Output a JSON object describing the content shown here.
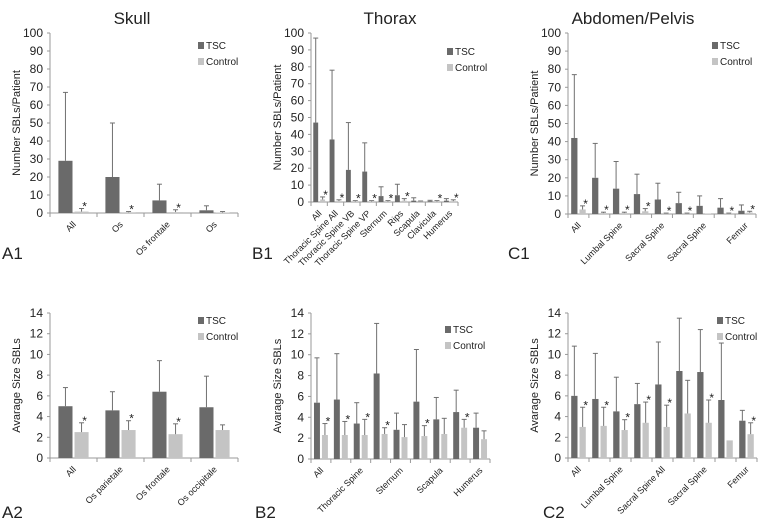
{
  "titles": {
    "skull": "Skull",
    "thorax": "Thorax",
    "abdomen": "Abdomen/Pelvis"
  },
  "colors": {
    "tsc": "#6a6a6a",
    "control": "#c4c4c4",
    "error": "#707070"
  },
  "chart_data": [
    {
      "id": "A1",
      "panel_label": "A1",
      "type": "bar",
      "ylabel": "Number SBLs/Patient",
      "ylim": [
        0,
        100
      ],
      "yticks": [
        0,
        10,
        20,
        30,
        40,
        50,
        60,
        70,
        80,
        90,
        100
      ],
      "legend": [
        "TSC",
        "Control"
      ],
      "legend_position": "top-right",
      "categories": [
        "All",
        "Os",
        "Os frontale",
        "Os"
      ],
      "series": [
        {
          "name": "TSC",
          "values": [
            29,
            20,
            7,
            1.5
          ],
          "err": [
            38,
            30,
            9,
            2.5
          ]
        },
        {
          "name": "Control",
          "values": [
            0.8,
            0.4,
            0.5,
            0.3
          ],
          "err": [
            1.7,
            0.4,
            1.3,
            0.5
          ]
        }
      ],
      "significant": [
        true,
        true,
        true,
        false
      ]
    },
    {
      "id": "B1",
      "panel_label": "B1",
      "type": "bar",
      "ylabel": "Number SBLs/Patient",
      "ylim": [
        0,
        100
      ],
      "yticks": [
        0,
        10,
        20,
        30,
        40,
        50,
        60,
        70,
        80,
        90,
        100
      ],
      "legend": [
        "TSC",
        "Control"
      ],
      "legend_position": "top-right",
      "categories": [
        "All",
        "Thoracic Spine All",
        "Thoracic Spine VB",
        "Thoracic Spine VP",
        "Sternum",
        "Rips",
        "Scapula",
        "Clavicula",
        "Humerus"
      ],
      "series": [
        {
          "name": "TSC",
          "values": [
            47,
            37,
            19,
            18,
            3.5,
            4,
            0.8,
            0.5,
            0.8
          ],
          "err": [
            50,
            41,
            28,
            17,
            5.5,
            6.5,
            1.7,
            0.5,
            1.2
          ]
        },
        {
          "name": "Control",
          "values": [
            1.5,
            0.5,
            0.3,
            0.3,
            0.3,
            0.8,
            0.3,
            0.3,
            0.5
          ],
          "err": [
            1.5,
            0.8,
            0.5,
            0.5,
            0.5,
            1.2,
            0.3,
            0.5,
            0.8
          ]
        }
      ],
      "significant": [
        true,
        true,
        true,
        true,
        true,
        true,
        false,
        true,
        true
      ]
    },
    {
      "id": "C1",
      "panel_label": "C1",
      "type": "bar",
      "ylabel": "Number SBLs/Patient",
      "ylim": [
        0,
        100
      ],
      "yticks": [
        0,
        10,
        20,
        30,
        40,
        50,
        60,
        70,
        80,
        90,
        100
      ],
      "legend": [
        "TSC",
        "Control"
      ],
      "legend_position": "top-right",
      "categories": [
        "All",
        "",
        "Lumbal Spine",
        "",
        "Sacral Spine",
        "",
        "Sacral Spine",
        "",
        "Femur"
      ],
      "series": [
        {
          "name": "TSC",
          "values": [
            42,
            20,
            14,
            11,
            8,
            6,
            4.5,
            3.5,
            1.8
          ],
          "err": [
            35,
            19,
            15,
            11,
            9,
            6,
            5.5,
            5,
            3.2
          ]
        },
        {
          "name": "Control",
          "values": [
            2.5,
            0.5,
            0.5,
            1.5,
            0.3,
            0.3,
            0.3,
            0.3,
            0.8
          ],
          "err": [
            2,
            0.5,
            0.5,
            1.5,
            0.2,
            0.2,
            0,
            0.2,
            0.7
          ]
        }
      ],
      "significant": [
        true,
        true,
        true,
        true,
        true,
        true,
        false,
        true,
        true
      ]
    },
    {
      "id": "A2",
      "panel_label": "A2",
      "type": "bar",
      "ylabel": "Avarage Size SBLs",
      "ylim": [
        0,
        14
      ],
      "yticks": [
        0,
        2,
        4,
        6,
        8,
        10,
        12,
        14
      ],
      "legend": [
        "TSC",
        "Control"
      ],
      "legend_position": "top-right",
      "categories": [
        "All",
        "Os parietale",
        "Os frontale",
        "Os occipitale"
      ],
      "series": [
        {
          "name": "TSC",
          "values": [
            5,
            4.6,
            6.4,
            4.9
          ],
          "err": [
            1.8,
            1.8,
            3,
            3
          ]
        },
        {
          "name": "Control",
          "values": [
            2.5,
            2.7,
            2.3,
            2.7
          ],
          "err": [
            0.9,
            0.9,
            1,
            0.5
          ]
        }
      ],
      "significant": [
        true,
        true,
        true,
        false
      ]
    },
    {
      "id": "B2",
      "panel_label": "B2",
      "type": "bar",
      "ylabel": "Avarage Size SBLs",
      "ylim": [
        0,
        14
      ],
      "yticks": [
        0,
        2,
        4,
        6,
        8,
        10,
        12,
        14
      ],
      "legend": [
        "TSC",
        "Control"
      ],
      "legend_position": "top-right",
      "categories": [
        "All",
        "",
        "Thoracic Spine",
        "",
        "Sternum",
        "",
        "Scapula",
        "",
        "Humerus"
      ],
      "series": [
        {
          "name": "TSC",
          "values": [
            5.4,
            5.7,
            3.4,
            8.2,
            2.8,
            5.5,
            3.8,
            4.5,
            3.0
          ],
          "err": [
            4.3,
            4.4,
            2,
            4.8,
            1.6,
            5,
            2.1,
            2.1,
            1.4
          ]
        },
        {
          "name": "Control",
          "values": [
            2.3,
            2.3,
            2.3,
            2.4,
            2.1,
            2.2,
            2.4,
            3.0,
            1.9
          ],
          "err": [
            1.1,
            1.3,
            1.5,
            0.6,
            1.2,
            1,
            1.5,
            0.8,
            0.8
          ]
        }
      ],
      "significant": [
        true,
        true,
        true,
        true,
        false,
        true,
        false,
        true,
        false
      ]
    },
    {
      "id": "C2",
      "panel_label": "C2",
      "type": "bar",
      "ylabel": "Avarage Size SBLs",
      "ylim": [
        0,
        14
      ],
      "yticks": [
        0,
        2,
        4,
        6,
        8,
        10,
        12,
        14
      ],
      "legend": [
        "TSC",
        "Control"
      ],
      "legend_position": "top-right",
      "categories": [
        "All",
        "",
        "Lumbal Spine",
        "",
        "Sacral Spine All",
        "",
        "Sacral Spine",
        "",
        "Femur"
      ],
      "series": [
        {
          "name": "TSC",
          "values": [
            6.0,
            5.7,
            4.5,
            5.2,
            7.1,
            8.4,
            8.3,
            5.6,
            3.6
          ],
          "err": [
            4.8,
            4.4,
            3.3,
            2,
            4.1,
            5.1,
            4.1,
            5.5,
            1
          ]
        },
        {
          "name": "Control",
          "values": [
            3.0,
            3.1,
            2.7,
            3.4,
            3.0,
            4.3,
            3.4,
            1.7,
            2.3
          ],
          "err": [
            1.9,
            1.8,
            1,
            2,
            2.1,
            3.2,
            2.2,
            0,
            1.1
          ]
        }
      ],
      "significant": [
        true,
        true,
        true,
        true,
        true,
        false,
        true,
        false,
        true
      ]
    }
  ]
}
